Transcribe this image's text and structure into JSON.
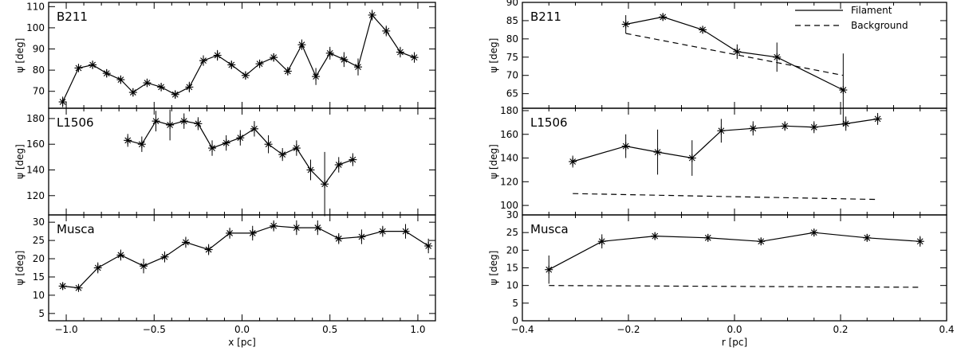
{
  "chart_data": [
    {
      "type": "line",
      "label": "B211",
      "xlabel": "",
      "ylabel": "ψ [deg]",
      "xlim": [
        -1.1,
        1.1
      ],
      "ylim": [
        62,
        112
      ],
      "xticks": [],
      "yticks": [
        70,
        80,
        90,
        100,
        110
      ],
      "series": [
        {
          "style": "solid",
          "x": [
            -1.02,
            -0.93,
            -0.85,
            -0.77,
            -0.69,
            -0.62,
            -0.54,
            -0.46,
            -0.38,
            -0.3,
            -0.22,
            -0.14,
            -0.06,
            0.02,
            0.1,
            0.18,
            0.26,
            0.34,
            0.42,
            0.5,
            0.58,
            0.66,
            0.74,
            0.82,
            0.9,
            0.98
          ],
          "y": [
            65,
            81,
            82.5,
            78.5,
            75.5,
            69.5,
            74,
            72,
            68.5,
            72,
            84.5,
            87,
            82.5,
            77.5,
            83,
            86,
            79.5,
            92,
            77,
            88,
            85,
            81.5,
            106,
            98.5,
            88.5,
            86
          ],
          "err": [
            2.5,
            2,
            2,
            2,
            2,
            2,
            2,
            2,
            2,
            2.5,
            2.5,
            2.5,
            2,
            2,
            2,
            2,
            2,
            2.5,
            4,
            3,
            3.5,
            4,
            2.5,
            2.5,
            2.5,
            2.5
          ]
        }
      ]
    },
    {
      "type": "line",
      "label": "L1506",
      "xlabel": "",
      "ylabel": "ψ [deg]",
      "xlim": [
        -1.1,
        1.1
      ],
      "ylim": [
        105,
        188
      ],
      "xticks": [],
      "yticks": [
        120,
        140,
        160,
        180
      ],
      "series": [
        {
          "style": "solid",
          "x": [
            -0.65,
            -0.57,
            -0.49,
            -0.41,
            -0.33,
            -0.25,
            -0.17,
            -0.09,
            -0.01,
            0.07,
            0.15,
            0.23,
            0.31,
            0.39,
            0.47,
            0.55,
            0.63
          ],
          "y": [
            163,
            160,
            178,
            175,
            178,
            176,
            157,
            161,
            165,
            172,
            160,
            152,
            157,
            140,
            129,
            144,
            148
          ],
          "err": [
            5,
            6,
            8,
            12,
            6,
            5,
            6,
            6,
            6,
            6,
            7,
            5,
            6,
            8,
            25,
            6,
            5
          ]
        }
      ]
    },
    {
      "type": "line",
      "label": "Musca",
      "xlabel": "x [pc]",
      "ylabel": "ψ [deg]",
      "xlim": [
        -1.1,
        1.1
      ],
      "ylim": [
        3,
        32
      ],
      "xticks": [
        -1.0,
        -0.5,
        0.0,
        0.5,
        1.0
      ],
      "xticklabels": [
        "−1.0",
        "−0.5",
        "0.0",
        "0.5",
        "1.0"
      ],
      "yticks": [
        5,
        10,
        15,
        20,
        25,
        30
      ],
      "series": [
        {
          "style": "solid",
          "x": [
            -1.02,
            -0.93,
            -0.82,
            -0.69,
            -0.56,
            -0.44,
            -0.32,
            -0.19,
            -0.07,
            0.06,
            0.18,
            0.31,
            0.43,
            0.55,
            0.68,
            0.8,
            0.93,
            1.06
          ],
          "y": [
            12.5,
            12,
            17.5,
            21,
            18,
            20.5,
            24.5,
            22.5,
            27,
            27,
            29,
            28.5,
            28.5,
            25.5,
            26,
            27.5,
            27.5,
            23.5
          ],
          "err": [
            1,
            1,
            1.5,
            1.5,
            2,
            1.5,
            1.5,
            1.5,
            1.5,
            2,
            1.5,
            2,
            2,
            1.5,
            2,
            1.5,
            2,
            2
          ]
        }
      ]
    },
    {
      "type": "line",
      "label": "B211",
      "xlabel": "",
      "ylabel": "ψ [deg]",
      "xlim": [
        -0.4,
        0.4
      ],
      "ylim": [
        61,
        90
      ],
      "xticks": [],
      "yticks": [
        65,
        70,
        75,
        80,
        85,
        90
      ],
      "legend": {
        "position": "top-right",
        "entries": [
          {
            "label": "Filament",
            "style": "solid"
          },
          {
            "label": "Background",
            "style": "dashed"
          }
        ]
      },
      "series": [
        {
          "style": "solid",
          "x": [
            -0.205,
            -0.135,
            -0.06,
            0.005,
            0.08,
            0.205
          ],
          "y": [
            84,
            86,
            82.5,
            76.5,
            75,
            66
          ],
          "err": [
            2.5,
            1,
            1,
            2,
            4,
            10
          ]
        },
        {
          "style": "dashed",
          "x": [
            -0.205,
            0.205
          ],
          "y": [
            81.5,
            70
          ],
          "err": []
        }
      ]
    },
    {
      "type": "line",
      "label": "L1506",
      "xlabel": "",
      "ylabel": "ψ [deg]",
      "xlim": [
        -0.4,
        0.4
      ],
      "ylim": [
        92,
        182
      ],
      "xticks": [],
      "yticks": [
        100,
        120,
        140,
        160,
        180
      ],
      "series": [
        {
          "style": "solid",
          "x": [
            -0.305,
            -0.205,
            -0.145,
            -0.08,
            -0.025,
            0.035,
            0.095,
            0.15,
            0.21,
            0.27
          ],
          "y": [
            137,
            150,
            145,
            140,
            163,
            165,
            167,
            166,
            169,
            173
          ],
          "err": [
            5,
            10,
            19,
            15,
            10,
            6,
            4,
            5,
            6,
            5
          ]
        },
        {
          "style": "dashed",
          "x": [
            -0.305,
            0.27
          ],
          "y": [
            110,
            105
          ],
          "err": []
        }
      ]
    },
    {
      "type": "line",
      "label": "Musca",
      "xlabel": "r [pc]",
      "ylabel": "ψ [deg]",
      "xlim": [
        -0.4,
        0.4
      ],
      "ylim": [
        0,
        30
      ],
      "xticks": [
        -0.4,
        -0.2,
        0.0,
        0.2,
        0.4
      ],
      "xticklabels": [
        "−0.4",
        "−0.2",
        "0.0",
        "0.2",
        "0.4"
      ],
      "yticks": [
        0,
        5,
        10,
        15,
        20,
        25,
        30
      ],
      "series": [
        {
          "style": "solid",
          "x": [
            -0.35,
            -0.25,
            -0.15,
            -0.05,
            0.05,
            0.15,
            0.25,
            0.35
          ],
          "y": [
            14.5,
            22.5,
            24,
            23.5,
            22.5,
            25,
            23.5,
            22.5
          ],
          "err": [
            4,
            2,
            1,
            1,
            1,
            1,
            1,
            1.5
          ]
        },
        {
          "style": "dashed",
          "x": [
            -0.35,
            0.35
          ],
          "y": [
            10,
            9.5
          ],
          "err": []
        }
      ]
    }
  ]
}
